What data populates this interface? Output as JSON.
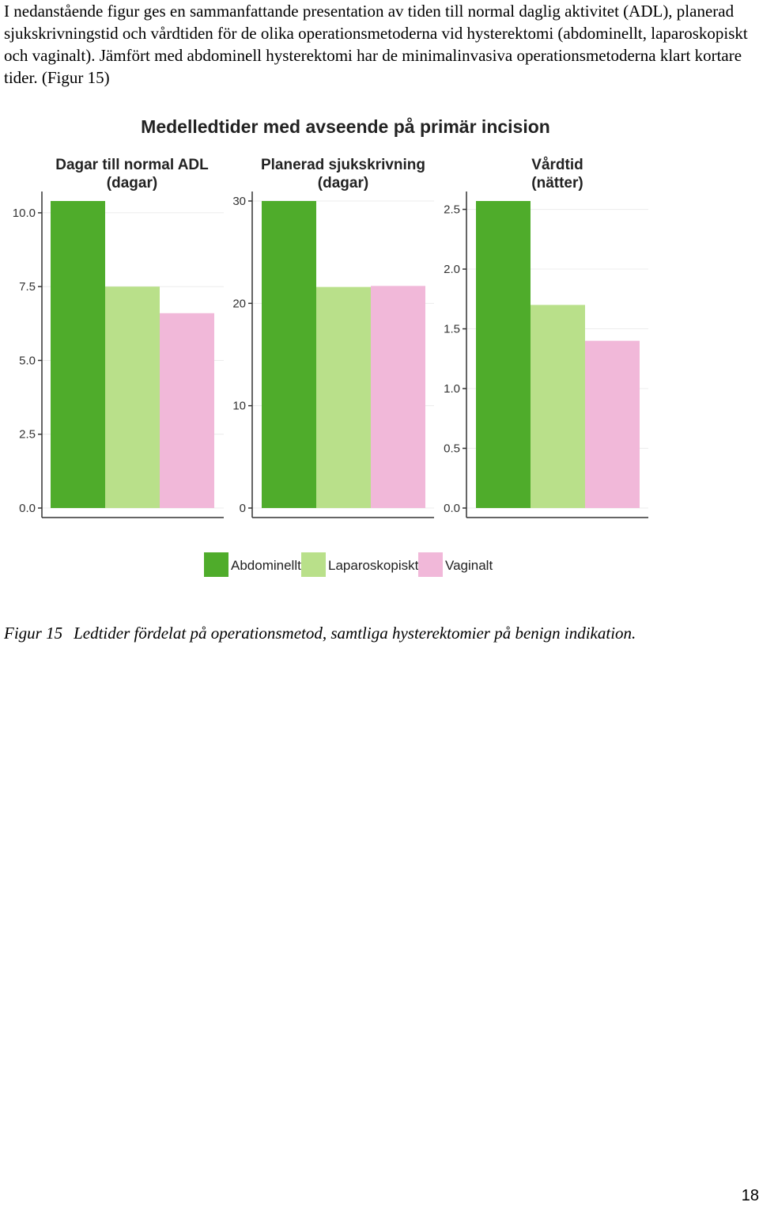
{
  "intro_text": "I nedanstående figur ges en sammanfattande presentation av tiden till normal daglig aktivitet (ADL), planerad sjukskrivningstid och vårdtiden för de olika operationsmetoderna vid hysterektomi (abdominellt, laparoskopiskt och vaginalt). Jämfört med abdominell hysterektomi har de minimalinvasiva operationsmetoderna klart kortare tider. (Figur 15)",
  "chart_data": {
    "type": "bar",
    "title": "Medelledtider med avseende på primär incision",
    "colors": [
      "#4fac2b",
      "#b9e08a",
      "#f1b8d9"
    ],
    "legend": {
      "placement": "bottom",
      "entries": [
        "Abdominellt",
        "Laparoskopiskt",
        "Vaginalt"
      ]
    },
    "panels": [
      {
        "title_lines": [
          "Dagar till normal ADL",
          "(dagar)"
        ],
        "ylim": [
          0,
          10.4
        ],
        "ticks": [
          0,
          2.5,
          5,
          7.5,
          10
        ],
        "tick_labels": [
          "0.0",
          "2.5",
          "5.0",
          "7.5",
          "10.0"
        ],
        "values": [
          10.4,
          7.5,
          6.6
        ]
      },
      {
        "title_lines": [
          "Planerad sjukskrivning",
          "(dagar)"
        ],
        "ylim": [
          0,
          30
        ],
        "ticks": [
          0,
          10,
          20,
          30
        ],
        "tick_labels": [
          "0",
          "10",
          "20",
          "30"
        ],
        "values": [
          30,
          21.6,
          21.7
        ]
      },
      {
        "title_lines": [
          "Vårdtid",
          "(nätter)"
        ],
        "ylim": [
          0,
          2.57
        ],
        "ticks": [
          0,
          0.5,
          1,
          1.5,
          2,
          2.5
        ],
        "tick_labels": [
          "0.0",
          "0.5",
          "1.0",
          "1.5",
          "2.0",
          "2.5"
        ],
        "values": [
          2.57,
          1.7,
          1.4
        ]
      }
    ]
  },
  "caption": {
    "label": "Figur 15",
    "text": "Ledtider fördelat på operationsmetod, samtliga hysterektomier på benign indikation."
  },
  "page_number": "18"
}
